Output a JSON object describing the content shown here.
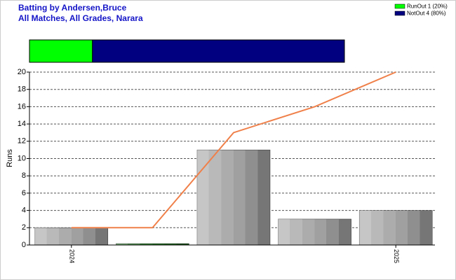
{
  "chart_data": {
    "type": "bar",
    "title": "Batting by Andersen,Bruce",
    "subtitle": "All Matches, All Grades, Narara",
    "ylabel": "Runs",
    "categories": [
      "2024",
      null,
      null,
      null,
      "2025"
    ],
    "values": [
      2,
      0,
      11,
      3,
      4
    ],
    "bar_colors": [
      "#a8a8a8",
      "#1f7a1f",
      "#a8a8a8",
      "#a8a8a8",
      "#a8a8a8"
    ],
    "line": {
      "color": "#f0804a",
      "values": [
        2,
        2,
        13,
        16,
        20
      ]
    },
    "ylim": [
      0,
      20
    ],
    "yticks": [
      0,
      2,
      4,
      6,
      8,
      10,
      12,
      14,
      16,
      18,
      20
    ],
    "grid": true,
    "dismissals": [
      {
        "label": "RunOut 1 (20%)",
        "value": 1,
        "color": "#00ff00"
      },
      {
        "label": "NotOut 4 (80%)",
        "value": 4,
        "color": "#000080"
      }
    ]
  }
}
